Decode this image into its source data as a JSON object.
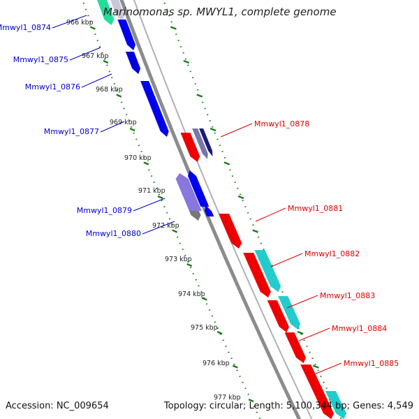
{
  "title": "Marinomonas sp. MWYL1, complete genome",
  "footer": {
    "accession": "Accession: NC_009654",
    "summary": "Topology: circular; Length: 5,100,344 bp; Genes: 4,549"
  },
  "colors": {
    "reverse_label": "#0000cc",
    "forward_label": "#dd0000",
    "backbone": "#8c8c8c",
    "ticks": "#1a7f1a"
  },
  "kbp_labels": [
    "966 kbp",
    "967 kbp",
    "968 kbp",
    "969 kbp",
    "970 kbp",
    "971 kbp",
    "972 kbp",
    "973 kbp",
    "974 kbp",
    "975 kbp",
    "976 kbp",
    "977 kbp"
  ],
  "gene_labels_left": [
    "Mmwyl1_0874",
    "Mmwyl1_0875",
    "Mmwyl1_0876",
    "Mmwyl1_0877",
    "Mmwyl1_0879",
    "Mmwyl1_0880"
  ],
  "gene_labels_right": [
    "Mmwyl1_0878",
    "Mmwyl1_0881",
    "Mmwyl1_0882",
    "Mmwyl1_0883",
    "Mmwyl1_0884",
    "Mmwyl1_0885"
  ]
}
